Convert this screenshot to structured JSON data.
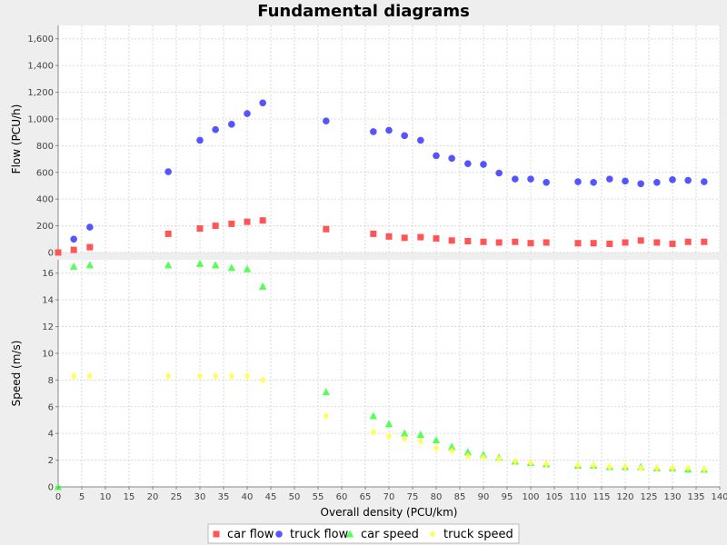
{
  "chart_data": {
    "type": "scatter",
    "title": "Fundamental diagrams",
    "xlabel": "Overall density (PCU/km)",
    "xlim": [
      0,
      140
    ],
    "xticks": [
      0,
      5,
      10,
      15,
      20,
      25,
      30,
      35,
      40,
      45,
      50,
      55,
      60,
      65,
      70,
      75,
      80,
      85,
      90,
      95,
      100,
      105,
      110,
      115,
      120,
      125,
      130,
      135,
      140
    ],
    "grid": true,
    "legend_position": "bottom",
    "subplots": [
      {
        "ylabel": "Flow (PCU/h)",
        "ylim": [
          0,
          1700
        ],
        "yticks": [
          0,
          200,
          400,
          600,
          800,
          1000,
          1200,
          1400,
          1600
        ],
        "ytick_labels": [
          "0",
          "200",
          "400",
          "600",
          "800",
          "1,000",
          "1,200",
          "1,400",
          "1,600"
        ],
        "series": [
          {
            "name": "car flow",
            "marker": "square",
            "color": "#ff5555",
            "x": [
              0,
              3.3,
              6.7,
              23.3,
              30,
              33.3,
              36.7,
              40,
              43.3,
              56.7,
              66.7,
              70,
              73.3,
              76.7,
              80,
              83.3,
              86.7,
              90,
              93.3,
              96.7,
              100,
              103.3,
              110,
              113.3,
              116.7,
              120,
              123.3,
              126.7,
              130,
              133.3,
              136.7
            ],
            "y": [
              0,
              20,
              40,
              140,
              180,
              200,
              215,
              230,
              240,
              175,
              140,
              120,
              110,
              115,
              105,
              90,
              85,
              80,
              75,
              80,
              70,
              75,
              70,
              70,
              65,
              75,
              90,
              75,
              65,
              80,
              80
            ]
          },
          {
            "name": "truck flow",
            "marker": "circle",
            "color": "#5555ff",
            "x": [
              3.3,
              6.7,
              23.3,
              30,
              33.3,
              36.7,
              40,
              43.3,
              56.7,
              66.7,
              70,
              73.3,
              76.7,
              80,
              83.3,
              86.7,
              90,
              93.3,
              96.7,
              100,
              103.3,
              110,
              113.3,
              116.7,
              120,
              123.3,
              126.7,
              130,
              133.3,
              136.7
            ],
            "y": [
              100,
              190,
              605,
              840,
              920,
              960,
              1040,
              1120,
              985,
              905,
              915,
              875,
              840,
              725,
              705,
              665,
              660,
              595,
              550,
              550,
              525,
              530,
              525,
              550,
              535,
              515,
              525,
              545,
              540,
              530
            ]
          }
        ]
      },
      {
        "ylabel": "Speed (m/s)",
        "ylim": [
          0,
          17
        ],
        "yticks": [
          0,
          2,
          4,
          6,
          8,
          10,
          12,
          14,
          16
        ],
        "ytick_labels": [
          "0",
          "2",
          "4",
          "6",
          "8",
          "10",
          "12",
          "14",
          "16"
        ],
        "series": [
          {
            "name": "car speed",
            "marker": "triangle",
            "color": "#55ff55",
            "x": [
              0,
              3.3,
              6.7,
              23.3,
              30,
              33.3,
              36.7,
              40,
              43.3,
              56.7,
              66.7,
              70,
              73.3,
              76.7,
              80,
              83.3,
              86.7,
              90,
              93.3,
              96.7,
              100,
              103.3,
              110,
              113.3,
              116.7,
              120,
              123.3,
              126.7,
              130,
              133.3,
              136.7
            ],
            "y": [
              0,
              16.5,
              16.6,
              16.6,
              16.7,
              16.6,
              16.4,
              16.3,
              15.0,
              7.1,
              5.3,
              4.7,
              4.0,
              3.9,
              3.5,
              3.0,
              2.6,
              2.4,
              2.2,
              1.9,
              1.8,
              1.7,
              1.6,
              1.6,
              1.5,
              1.5,
              1.5,
              1.4,
              1.4,
              1.3,
              1.3
            ]
          },
          {
            "name": "truck speed",
            "marker": "diamond",
            "color": "#ffff55",
            "x": [
              3.3,
              6.7,
              23.3,
              30,
              33.3,
              36.7,
              40,
              43.3,
              56.7,
              66.7,
              70,
              73.3,
              76.7,
              80,
              83.3,
              86.7,
              90,
              93.3,
              96.7,
              100,
              103.3,
              110,
              113.3,
              116.7,
              120,
              123.3,
              126.7,
              130,
              133.3,
              136.7
            ],
            "y": [
              8.3,
              8.3,
              8.3,
              8.3,
              8.3,
              8.3,
              8.3,
              8.0,
              5.3,
              4.1,
              3.8,
              3.6,
              3.4,
              2.9,
              2.7,
              2.3,
              2.2,
              2.1,
              1.9,
              1.8,
              1.7,
              1.6,
              1.6,
              1.5,
              1.5,
              1.4,
              1.4,
              1.4,
              1.4,
              1.3
            ]
          }
        ]
      }
    ],
    "legend": [
      {
        "label": "car flow",
        "marker": "square",
        "color": "#ff5555"
      },
      {
        "label": "truck flow",
        "marker": "circle",
        "color": "#5555ff"
      },
      {
        "label": "car speed",
        "marker": "triangle",
        "color": "#55ff55"
      },
      {
        "label": "truck speed",
        "marker": "diamond",
        "color": "#ffff55"
      }
    ]
  }
}
